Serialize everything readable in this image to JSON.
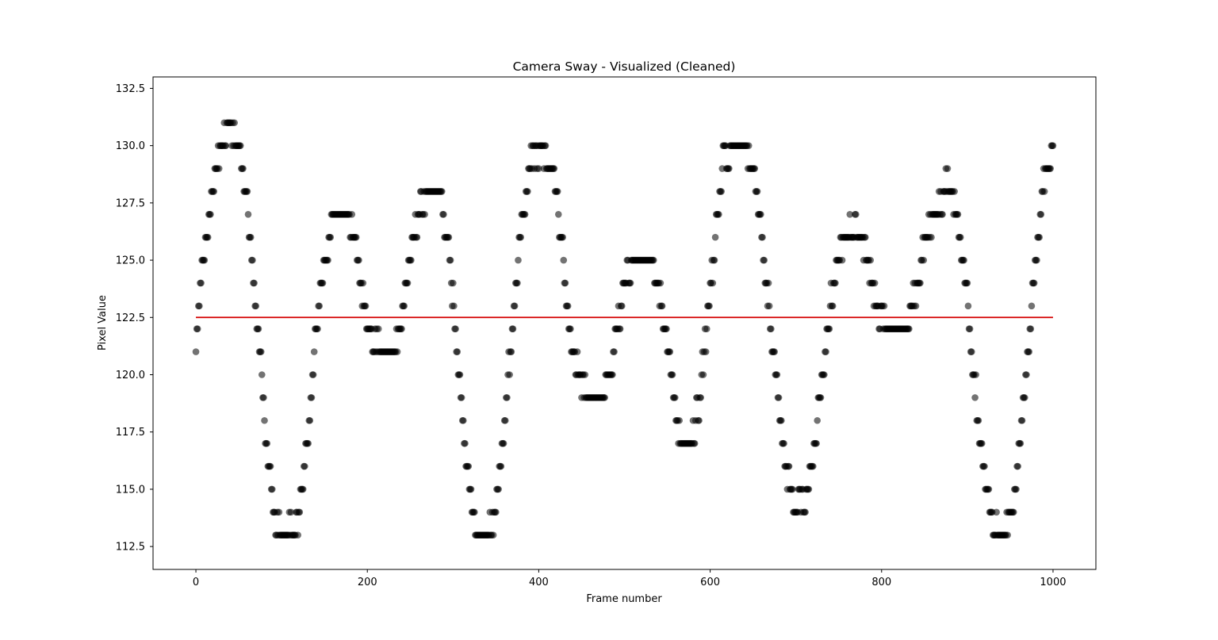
{
  "chart_data": {
    "type": "scatter",
    "title": "Camera Sway - Visualized (Cleaned)",
    "xlabel": "Frame number",
    "ylabel": "Pixel Value",
    "xlim": [
      -50,
      1050
    ],
    "ylim": [
      111.5,
      133.0
    ],
    "xticks": [
      0,
      200,
      400,
      600,
      800,
      1000
    ],
    "yticks": [
      112.5,
      115.0,
      117.5,
      120.0,
      122.5,
      125.0,
      127.5,
      130.0,
      132.5
    ],
    "xtick_labels": [
      "0",
      "200",
      "400",
      "600",
      "800",
      "1000"
    ],
    "ytick_labels": [
      "112.5",
      "115.0",
      "117.5",
      "120.0",
      "122.5",
      "125.0",
      "127.5",
      "130.0",
      "132.5"
    ],
    "grid": false,
    "marker_color": "#000000",
    "marker_alpha": 0.55,
    "mean_line": {
      "y": 122.5,
      "x_range": [
        0,
        1000
      ],
      "color": "#d40000"
    },
    "anchors": [
      [
        0,
        121.5
      ],
      [
        8,
        125
      ],
      [
        18,
        127.5
      ],
      [
        28,
        130
      ],
      [
        40,
        131
      ],
      [
        52,
        130
      ],
      [
        62,
        126.5
      ],
      [
        72,
        122
      ],
      [
        84,
        116.5
      ],
      [
        92,
        113.5
      ],
      [
        104,
        113
      ],
      [
        118,
        113.5
      ],
      [
        128,
        116.5
      ],
      [
        138,
        121
      ],
      [
        148,
        124.5
      ],
      [
        160,
        127
      ],
      [
        172,
        127
      ],
      [
        184,
        126
      ],
      [
        194,
        123.5
      ],
      [
        206,
        121.5
      ],
      [
        218,
        121
      ],
      [
        230,
        121
      ],
      [
        240,
        122.5
      ],
      [
        250,
        125
      ],
      [
        262,
        127.5
      ],
      [
        274,
        128
      ],
      [
        286,
        128
      ],
      [
        296,
        125
      ],
      [
        306,
        120.5
      ],
      [
        316,
        116
      ],
      [
        328,
        113
      ],
      [
        340,
        113
      ],
      [
        350,
        114
      ],
      [
        360,
        118
      ],
      [
        370,
        122.5
      ],
      [
        380,
        126.5
      ],
      [
        392,
        129.5
      ],
      [
        404,
        130
      ],
      [
        416,
        129
      ],
      [
        426,
        126
      ],
      [
        436,
        122
      ],
      [
        446,
        120
      ],
      [
        458,
        119
      ],
      [
        470,
        119
      ],
      [
        480,
        119.5
      ],
      [
        490,
        121.5
      ],
      [
        500,
        124
      ],
      [
        512,
        125
      ],
      [
        524,
        125
      ],
      [
        534,
        125
      ],
      [
        544,
        123
      ],
      [
        556,
        119.5
      ],
      [
        566,
        117
      ],
      [
        578,
        117
      ],
      [
        588,
        119
      ],
      [
        596,
        122
      ],
      [
        606,
        126
      ],
      [
        616,
        129.5
      ],
      [
        628,
        130
      ],
      [
        640,
        130
      ],
      [
        654,
        128
      ],
      [
        666,
        124
      ],
      [
        676,
        120
      ],
      [
        688,
        116
      ],
      [
        700,
        114
      ],
      [
        712,
        115
      ],
      [
        722,
        117
      ],
      [
        734,
        121
      ],
      [
        744,
        124
      ],
      [
        756,
        126
      ],
      [
        770,
        126.5
      ],
      [
        782,
        125.5
      ],
      [
        794,
        123
      ],
      [
        806,
        122
      ],
      [
        818,
        122
      ],
      [
        830,
        122
      ],
      [
        842,
        124
      ],
      [
        852,
        126
      ],
      [
        864,
        127
      ],
      [
        876,
        128.5
      ],
      [
        888,
        127
      ],
      [
        898,
        124
      ],
      [
        908,
        120
      ],
      [
        918,
        116
      ],
      [
        930,
        113.5
      ],
      [
        942,
        113
      ],
      [
        954,
        114.5
      ],
      [
        966,
        119
      ],
      [
        978,
        124.5
      ],
      [
        988,
        128
      ],
      [
        1000,
        130
      ]
    ]
  }
}
